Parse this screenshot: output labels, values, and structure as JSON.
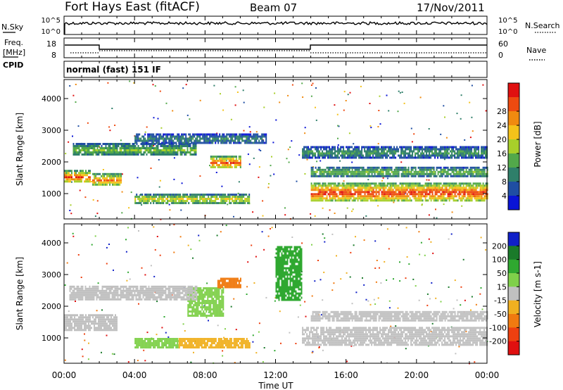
{
  "header": {
    "station": "Fort Hays East (fitACF)",
    "beam": "Beam 07",
    "date": "17/Nov/2011"
  },
  "panels": {
    "nsky_label": "N.Sky",
    "nsky_ticks": [
      "10^5",
      "10^0"
    ],
    "nsearch_label": "N.Search",
    "nsearch_ticks": [
      "10^5",
      "10^0"
    ],
    "freq_label": "Freq.",
    "freq_unit": "[MHz]",
    "freq_ticks": [
      "18",
      "8"
    ],
    "nave_label": "Nave",
    "nave_ticks": [
      "60",
      "0"
    ],
    "cpid_label": "CPID",
    "cpid_value": "normal (fast) 151 IF"
  },
  "chart_data": [
    {
      "type": "heatmap",
      "title": "",
      "xlabel": "Time UT",
      "ylabel": "Slant Range [km]",
      "x_ticks": [
        "00:00",
        "04:00",
        "08:00",
        "12:00",
        "16:00",
        "20:00",
        "00:00"
      ],
      "y_ticks": [
        1000,
        2000,
        3000,
        4000
      ],
      "ylim": [
        200,
        4600
      ],
      "colorbar": {
        "label": "Power [dB]",
        "ticks": [
          4,
          8,
          12,
          16,
          20,
          24,
          28
        ],
        "colors": [
          "#0a14d6",
          "#1f4ea3",
          "#2f7f6a",
          "#52a84a",
          "#a8cf2a",
          "#f4c21a",
          "#f08a10",
          "#ee4a10",
          "#e01010"
        ]
      },
      "bands": [
        {
          "t0": 0.0,
          "t1": 1.5,
          "r0": 1350,
          "r1": 1750,
          "level": 0.85
        },
        {
          "t0": 1.6,
          "t1": 3.2,
          "r0": 1250,
          "r1": 1650,
          "level": 0.75
        },
        {
          "t0": 4.0,
          "t1": 10.5,
          "r0": 700,
          "r1": 1000,
          "level": 0.6
        },
        {
          "t0": 8.3,
          "t1": 10.0,
          "r0": 1800,
          "r1": 2200,
          "level": 0.85
        },
        {
          "t0": 14.0,
          "t1": 24.0,
          "r0": 750,
          "r1": 1350,
          "level": 0.9
        },
        {
          "t0": 14.0,
          "t1": 24.0,
          "r0": 1550,
          "r1": 1850,
          "level": 0.45
        },
        {
          "t0": 13.5,
          "t1": 24.0,
          "r0": 2150,
          "r1": 2500,
          "level": 0.35
        },
        {
          "t0": 0.5,
          "t1": 7.5,
          "r0": 2200,
          "r1": 2600,
          "level": 0.45
        },
        {
          "t0": 4.0,
          "t1": 11.5,
          "r0": 2600,
          "r1": 2900,
          "level": 0.3
        }
      ]
    },
    {
      "type": "heatmap",
      "title": "",
      "xlabel": "Time UT",
      "ylabel": "Slant Range [km]",
      "x_ticks": [
        "00:00",
        "04:00",
        "08:00",
        "12:00",
        "16:00",
        "20:00",
        "00:00"
      ],
      "y_ticks": [
        1000,
        2000,
        3000,
        4000
      ],
      "ylim": [
        200,
        4600
      ],
      "colorbar": {
        "label": "Velocity [m s-1]",
        "ticks": [
          200,
          100,
          50,
          15,
          -15,
          -50,
          -100,
          -200
        ],
        "colors": [
          "#1020c8",
          "#1a7a2a",
          "#2fa830",
          "#7fd04a",
          "#c0c0c0",
          "#f0b020",
          "#f07a10",
          "#ee4010",
          "#e01010"
        ]
      },
      "bands": [
        {
          "t0": 0.0,
          "t1": 3.0,
          "r0": 1250,
          "r1": 1750,
          "velocity": 0
        },
        {
          "t0": 4.0,
          "t1": 6.5,
          "r0": 700,
          "r1": 1000,
          "velocity": 40
        },
        {
          "t0": 6.5,
          "t1": 10.5,
          "r0": 700,
          "r1": 1000,
          "velocity": -40
        },
        {
          "t0": 7.0,
          "t1": 9.0,
          "r0": 1700,
          "r1": 2600,
          "velocity": 30
        },
        {
          "t0": 8.7,
          "t1": 10.0,
          "r0": 2600,
          "r1": 2900,
          "velocity": -60
        },
        {
          "t0": 13.5,
          "t1": 24.0,
          "r0": 800,
          "r1": 1350,
          "velocity": 0
        },
        {
          "t0": 14.0,
          "t1": 24.0,
          "r0": 1550,
          "r1": 1850,
          "velocity": 0
        },
        {
          "t0": 0.3,
          "t1": 7.5,
          "r0": 2200,
          "r1": 2650,
          "velocity": 0
        },
        {
          "t0": 12.0,
          "t1": 13.5,
          "r0": 2200,
          "r1": 3900,
          "velocity": 60
        }
      ]
    }
  ]
}
